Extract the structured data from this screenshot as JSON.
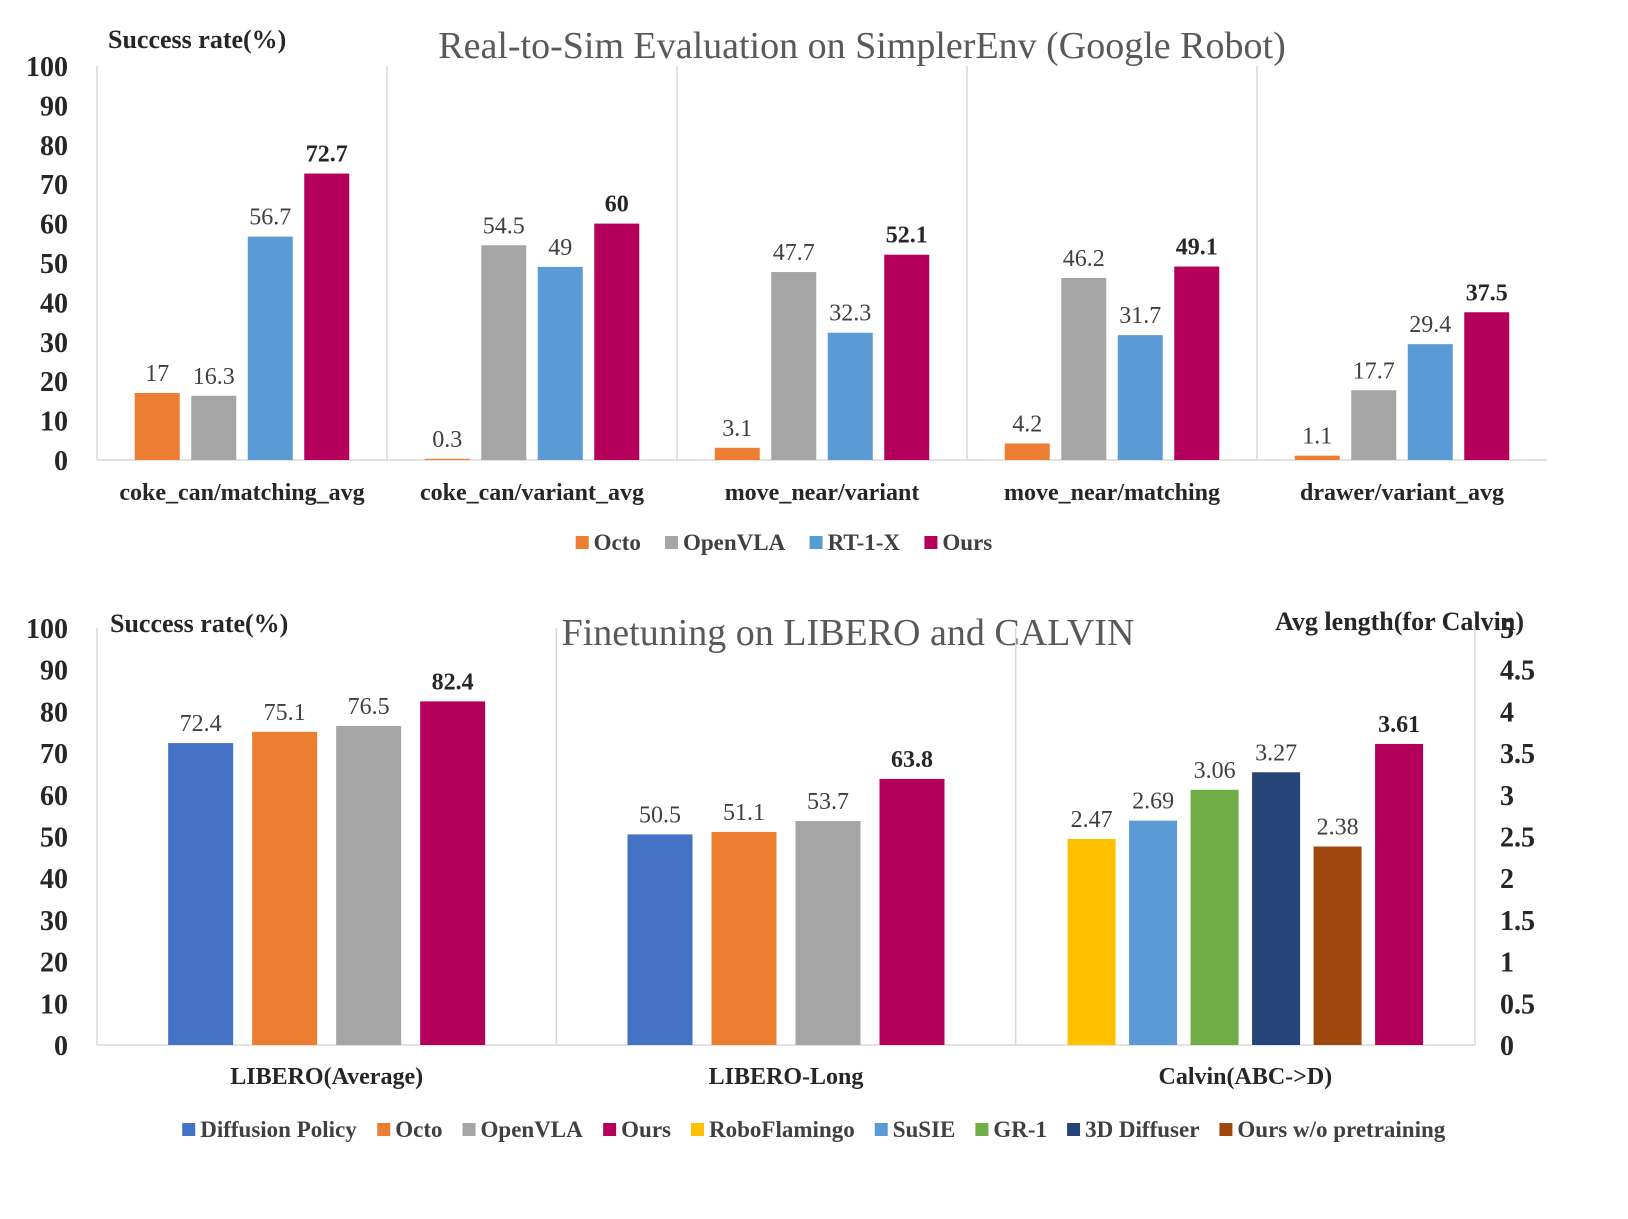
{
  "chart_data": [
    {
      "type": "bar",
      "title": "Real-to-Sim Evaluation on SimplerEnv (Google Robot)",
      "ylabel": "Success rate(%)",
      "ylim": [
        0,
        100
      ],
      "yticks": [
        "0",
        "10",
        "20",
        "30",
        "40",
        "50",
        "60",
        "70",
        "80",
        "90",
        "100"
      ],
      "grid": false,
      "legend_position": "bottom",
      "categories": [
        "coke_can/matching_avg",
        "coke_can/variant_avg",
        "move_near/variant",
        "move_near/matching",
        "drawer/variant_avg"
      ],
      "series": [
        {
          "name": "Octo",
          "color": "#ED7D31",
          "values": [
            17,
            0.3,
            3.1,
            4.2,
            1.1
          ],
          "labels": [
            "17",
            "0.3",
            "3.1",
            "4.2",
            "1.1"
          ],
          "bold": false
        },
        {
          "name": "OpenVLA",
          "color": "#A5A5A5",
          "values": [
            16.3,
            54.5,
            47.7,
            46.2,
            17.7
          ],
          "labels": [
            "16.3",
            "54.5",
            "47.7",
            "46.2",
            "17.7"
          ],
          "bold": false
        },
        {
          "name": "RT-1-X",
          "color": "#5B9BD5",
          "values": [
            56.7,
            49,
            32.3,
            31.7,
            29.4
          ],
          "labels": [
            "56.7",
            "49",
            "32.3",
            "31.7",
            "29.4"
          ],
          "bold": false
        },
        {
          "name": "Ours",
          "color": "#B5005B",
          "values": [
            72.7,
            60,
            52.1,
            49.1,
            37.5
          ],
          "labels": [
            "72.7",
            "60",
            "52.1",
            "49.1",
            "37.5"
          ],
          "bold": true
        }
      ]
    },
    {
      "type": "bar",
      "title": "Finetuning on LIBERO and CALVIN",
      "ylabel": "Success rate(%)",
      "ylabel_right": "Avg length(for Calvin)",
      "ylim": [
        0,
        100
      ],
      "ylim_right": [
        0,
        5
      ],
      "yticks": [
        "0",
        "10",
        "20",
        "30",
        "40",
        "50",
        "60",
        "70",
        "80",
        "90",
        "100"
      ],
      "yticks_right": [
        "0",
        "0.5",
        "1",
        "1.5",
        "2",
        "2.5",
        "3",
        "3.5",
        "4",
        "4.5",
        "5"
      ],
      "grid": false,
      "legend_position": "bottom",
      "legend": [
        {
          "name": "Diffusion Policy",
          "color": "#4472C4"
        },
        {
          "name": "Octo",
          "color": "#ED7D31"
        },
        {
          "name": "OpenVLA",
          "color": "#A5A5A5"
        },
        {
          "name": "Ours",
          "color": "#B5005B"
        },
        {
          "name": "RoboFlamingo",
          "color": "#FFC000"
        },
        {
          "name": "SuSIE",
          "color": "#5B9BD5"
        },
        {
          "name": "GR-1",
          "color": "#70AD47"
        },
        {
          "name": "3D Diffuser",
          "color": "#264478"
        },
        {
          "name": "Ours w/o pretraining",
          "color": "#9E480E"
        }
      ],
      "groups": [
        {
          "category": "LIBERO(Average)",
          "axis": "left",
          "bars": [
            {
              "series": "Diffusion Policy",
              "value": 72.4,
              "label": "72.4",
              "bold": false
            },
            {
              "series": "Octo",
              "value": 75.1,
              "label": "75.1",
              "bold": false
            },
            {
              "series": "OpenVLA",
              "value": 76.5,
              "label": "76.5",
              "bold": false
            },
            {
              "series": "Ours",
              "value": 82.4,
              "label": "82.4",
              "bold": true
            }
          ]
        },
        {
          "category": "LIBERO-Long",
          "axis": "left",
          "bars": [
            {
              "series": "Diffusion Policy",
              "value": 50.5,
              "label": "50.5",
              "bold": false
            },
            {
              "series": "Octo",
              "value": 51.1,
              "label": "51.1",
              "bold": false
            },
            {
              "series": "OpenVLA",
              "value": 53.7,
              "label": "53.7",
              "bold": false
            },
            {
              "series": "Ours",
              "value": 63.8,
              "label": "63.8",
              "bold": true
            }
          ]
        },
        {
          "category": "Calvin(ABC->D)",
          "axis": "right",
          "bars": [
            {
              "series": "RoboFlamingo",
              "value": 2.47,
              "label": "2.47",
              "bold": false
            },
            {
              "series": "SuSIE",
              "value": 2.69,
              "label": "2.69",
              "bold": false
            },
            {
              "series": "GR-1",
              "value": 3.06,
              "label": "3.06",
              "bold": false
            },
            {
              "series": "3D Diffuser",
              "value": 3.27,
              "label": "3.27",
              "bold": false
            },
            {
              "series": "Ours w/o pretraining",
              "value": 2.38,
              "label": "2.38",
              "bold": false
            },
            {
              "series": "Ours",
              "value": 3.61,
              "label": "3.61",
              "bold": true
            }
          ]
        }
      ]
    }
  ]
}
